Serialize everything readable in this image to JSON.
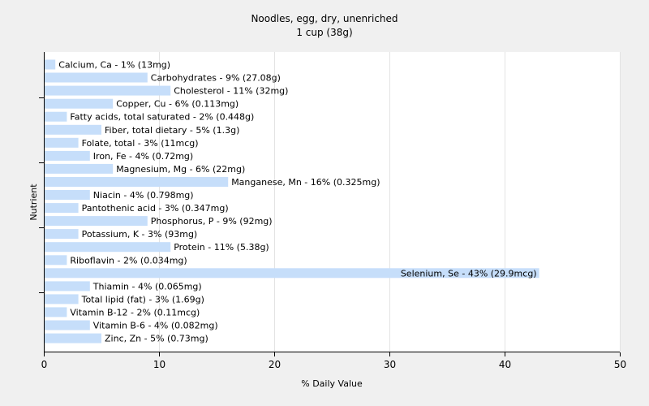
{
  "chart_data": {
    "type": "bar",
    "orientation": "horizontal",
    "title": "Noodles, egg, dry, unenriched",
    "subtitle": "1 cup (38g)",
    "xlabel": "% Daily Value",
    "ylabel": "Nutrient",
    "xlim": [
      0,
      50
    ],
    "xticks": [
      0,
      10,
      20,
      30,
      40,
      50
    ],
    "grid": true,
    "bar_color": "#c6defa",
    "categories": [
      "Calcium, Ca",
      "Carbohydrates",
      "Cholesterol",
      "Copper, Cu",
      "Fatty acids, total saturated",
      "Fiber, total dietary",
      "Folate, total",
      "Iron, Fe",
      "Magnesium, Mg",
      "Manganese, Mn",
      "Niacin",
      "Pantothenic acid",
      "Phosphorus, P",
      "Potassium, K",
      "Protein",
      "Riboflavin",
      "Selenium, Se",
      "Thiamin",
      "Total lipid (fat)",
      "Vitamin B-12",
      "Vitamin B-6",
      "Zinc, Zn"
    ],
    "values": [
      1,
      9,
      11,
      6,
      2,
      5,
      3,
      4,
      6,
      16,
      4,
      3,
      9,
      3,
      11,
      2,
      43,
      4,
      3,
      2,
      4,
      5
    ],
    "labels": [
      "Calcium, Ca - 1% (13mg)",
      "Carbohydrates - 9% (27.08g)",
      "Cholesterol - 11% (32mg)",
      "Copper, Cu - 6% (0.113mg)",
      "Fatty acids, total saturated - 2% (0.448g)",
      "Fiber, total dietary - 5% (1.3g)",
      "Folate, total - 3% (11mcg)",
      "Iron, Fe - 4% (0.72mg)",
      "Magnesium, Mg - 6% (22mg)",
      "Manganese, Mn - 16% (0.325mg)",
      "Niacin - 4% (0.798mg)",
      "Pantothenic acid - 3% (0.347mg)",
      "Phosphorus, P - 9% (92mg)",
      "Potassium, K - 3% (93mg)",
      "Protein - 11% (5.38g)",
      "Riboflavin - 2% (0.034mg)",
      "Selenium, Se - 43% (29.9mcg)",
      "Thiamin - 4% (0.065mg)",
      "Total lipid (fat) - 3% (1.69g)",
      "Vitamin B-12 - 2% (0.11mcg)",
      "Vitamin B-6 - 4% (0.082mg)",
      "Zinc, Zn - 5% (0.73mg)"
    ]
  }
}
